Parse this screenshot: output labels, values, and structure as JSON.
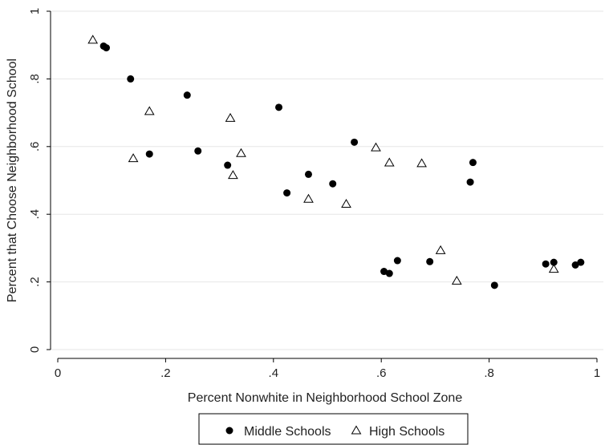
{
  "chart_data": {
    "type": "scatter",
    "title": "",
    "xlabel": "Percent Nonwhite in Neighborhood School Zone",
    "ylabel": "Percent that Choose Neighborhood School",
    "xlim": [
      0,
      1
    ],
    "ylim": [
      0,
      1
    ],
    "x_ticks": [
      0,
      0.2,
      0.4,
      0.6,
      0.8,
      1
    ],
    "x_tick_labels": [
      "0",
      ".2",
      ".4",
      ".6",
      ".8",
      "1"
    ],
    "y_ticks": [
      0,
      0.2,
      0.4,
      0.6,
      0.8,
      1
    ],
    "y_tick_labels": [
      "0",
      ".2",
      ".4",
      ".6",
      ".8",
      "1"
    ],
    "grid": "horizontal",
    "legend_position": "bottom",
    "series": [
      {
        "name": "Middle Schools",
        "marker": "filled-circle",
        "color": "#000000",
        "points": [
          [
            0.085,
            0.897
          ],
          [
            0.09,
            0.892
          ],
          [
            0.135,
            0.8
          ],
          [
            0.17,
            0.578
          ],
          [
            0.24,
            0.752
          ],
          [
            0.26,
            0.587
          ],
          [
            0.315,
            0.545
          ],
          [
            0.41,
            0.716
          ],
          [
            0.425,
            0.463
          ],
          [
            0.465,
            0.518
          ],
          [
            0.51,
            0.49
          ],
          [
            0.55,
            0.613
          ],
          [
            0.605,
            0.231
          ],
          [
            0.615,
            0.225
          ],
          [
            0.63,
            0.263
          ],
          [
            0.69,
            0.26
          ],
          [
            0.765,
            0.495
          ],
          [
            0.77,
            0.553
          ],
          [
            0.81,
            0.19
          ],
          [
            0.905,
            0.253
          ],
          [
            0.92,
            0.258
          ],
          [
            0.96,
            0.25
          ],
          [
            0.97,
            0.258
          ]
        ]
      },
      {
        "name": "High Schools",
        "marker": "hollow-triangle",
        "color": "#000000",
        "points": [
          [
            0.065,
            0.915
          ],
          [
            0.14,
            0.565
          ],
          [
            0.17,
            0.704
          ],
          [
            0.32,
            0.684
          ],
          [
            0.325,
            0.515
          ],
          [
            0.34,
            0.58
          ],
          [
            0.465,
            0.445
          ],
          [
            0.535,
            0.43
          ],
          [
            0.59,
            0.597
          ],
          [
            0.615,
            0.552
          ],
          [
            0.675,
            0.55
          ],
          [
            0.71,
            0.293
          ],
          [
            0.74,
            0.203
          ],
          [
            0.92,
            0.238
          ]
        ]
      }
    ]
  }
}
